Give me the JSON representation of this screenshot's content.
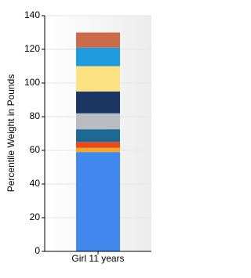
{
  "chart_data": {
    "type": "stacked_bar",
    "y_label": "Percentile Weight in Pounds",
    "categories": [
      "Girl 11 years"
    ],
    "series": [
      {
        "color": "#4189ee",
        "values": [
          59
        ]
      },
      {
        "color": "#f5a623",
        "values": [
          2.5
        ]
      },
      {
        "color": "#e8491d",
        "values": [
          3.5
        ]
      },
      {
        "color": "#1c6a94",
        "values": [
          7.5
        ]
      },
      {
        "color": "#b9bcc0",
        "values": [
          9.5
        ]
      },
      {
        "color": "#1c3664",
        "values": [
          13
        ]
      },
      {
        "color": "#fde283",
        "values": [
          15
        ]
      },
      {
        "color": "#1f9ce0",
        "values": [
          11
        ]
      },
      {
        "color": "#cb6b4a",
        "values": [
          9
        ]
      }
    ],
    "ylim": [
      0,
      140
    ],
    "yticks": [
      0,
      20,
      40,
      60,
      80,
      100,
      120,
      140
    ],
    "grid": true
  }
}
